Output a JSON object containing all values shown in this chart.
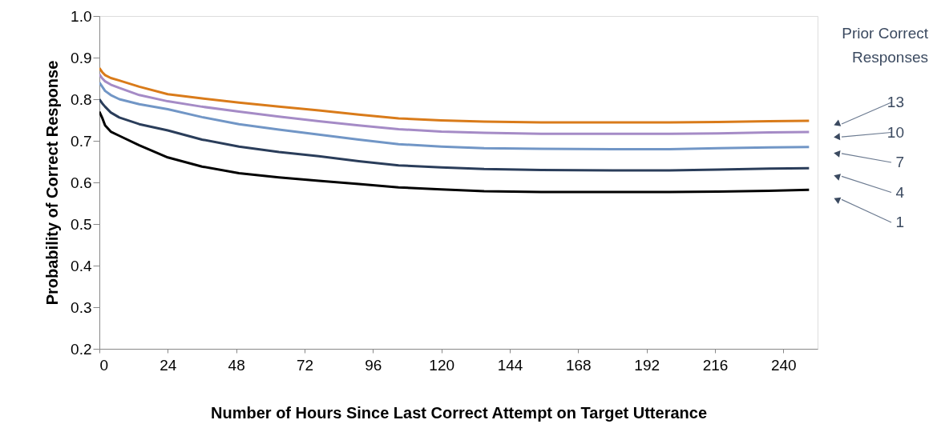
{
  "chart_data": {
    "type": "line",
    "xlabel": "Number of Hours Since Last Correct Attempt on Target Utterance",
    "ylabel": "Probability of Correct Response",
    "legend_title": "Prior Correct Responses",
    "x": [
      0,
      1,
      2,
      4,
      7,
      14,
      24,
      36,
      49,
      63,
      77,
      91,
      105,
      120,
      135,
      155,
      180,
      200,
      217,
      235,
      249
    ],
    "xlim": [
      0,
      252
    ],
    "xticks": [
      0,
      24,
      48,
      72,
      96,
      120,
      144,
      168,
      192,
      216,
      240
    ],
    "ylim": [
      0.2,
      1.0
    ],
    "yticks": [
      0.2,
      0.3,
      0.4,
      0.5,
      0.6,
      0.7,
      0.8,
      0.9,
      {
        "value": 1.0,
        "label": "1.0"
      }
    ],
    "grid": false,
    "legend": false,
    "marker": "none",
    "line_style": "solid",
    "series": [
      {
        "name": "13",
        "color": "#d97b1a",
        "values": [
          0.875,
          0.865,
          0.858,
          0.851,
          0.845,
          0.83,
          0.812,
          0.802,
          0.792,
          0.782,
          0.773,
          0.763,
          0.754,
          0.749,
          0.746,
          0.744,
          0.744,
          0.744,
          0.745,
          0.747,
          0.748
        ]
      },
      {
        "name": "10",
        "color": "#a58bc6",
        "values": [
          0.86,
          0.85,
          0.843,
          0.835,
          0.827,
          0.81,
          0.795,
          0.782,
          0.77,
          0.758,
          0.747,
          0.737,
          0.728,
          0.722,
          0.719,
          0.717,
          0.717,
          0.717,
          0.718,
          0.72,
          0.721
        ]
      },
      {
        "name": "7",
        "color": "#7196c6",
        "values": [
          0.84,
          0.83,
          0.82,
          0.81,
          0.8,
          0.788,
          0.776,
          0.757,
          0.74,
          0.727,
          0.715,
          0.703,
          0.692,
          0.686,
          0.682,
          0.681,
          0.68,
          0.68,
          0.682,
          0.684,
          0.685
        ]
      },
      {
        "name": "4",
        "color": "#2a3d5a",
        "values": [
          0.8,
          0.79,
          0.782,
          0.768,
          0.756,
          0.74,
          0.725,
          0.703,
          0.686,
          0.673,
          0.663,
          0.651,
          0.641,
          0.636,
          0.632,
          0.63,
          0.629,
          0.629,
          0.631,
          0.633,
          0.634
        ]
      },
      {
        "name": "1",
        "color": "#000000",
        "values": [
          0.77,
          0.755,
          0.737,
          0.722,
          0.712,
          0.689,
          0.66,
          0.638,
          0.622,
          0.612,
          0.604,
          0.596,
          0.588,
          0.583,
          0.579,
          0.577,
          0.577,
          0.577,
          0.578,
          0.58,
          0.582
        ]
      }
    ]
  }
}
